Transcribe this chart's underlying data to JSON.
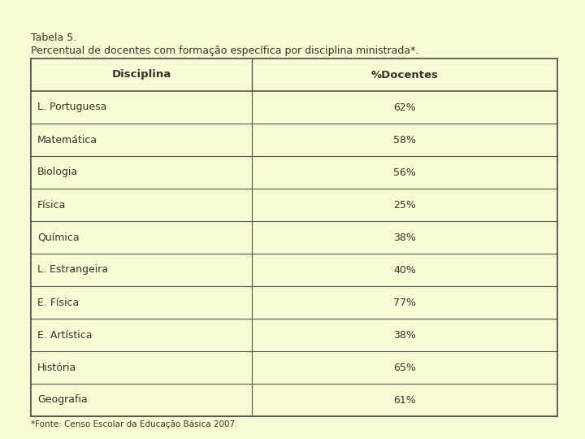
{
  "title_line1": "Tabela 5.",
  "title_line2": "Percentual de docentes com formação específica por disciplina ministrada*.",
  "col_headers": [
    "Disciplina",
    "%Docentes"
  ],
  "rows": [
    [
      "L. Portuguesa",
      "62%"
    ],
    [
      "Matemática",
      "58%"
    ],
    [
      "Biologia",
      "56%"
    ],
    [
      "Física",
      "25%"
    ],
    [
      "Química",
      "38%"
    ],
    [
      "L. Estrangeira",
      "40%"
    ],
    [
      "E. Física",
      "77%"
    ],
    [
      "E. Artística",
      "38%"
    ],
    [
      "História",
      "65%"
    ],
    [
      "Geografia",
      "61%"
    ]
  ],
  "footnote": "*Fonte: Censo Escolar da Educação Básica 2007.",
  "bg_color": "#FAFAD2",
  "header_bg": "#FAFAD2",
  "cell_bg": "#FAFAD2",
  "table_border_color": "#555555",
  "header_text_color": "#333333",
  "cell_text_color": "#333333",
  "title_color": "#333333",
  "header_fontsize": 9.5,
  "cell_fontsize": 9,
  "title_fontsize": 9,
  "footnote_fontsize": 7.5
}
